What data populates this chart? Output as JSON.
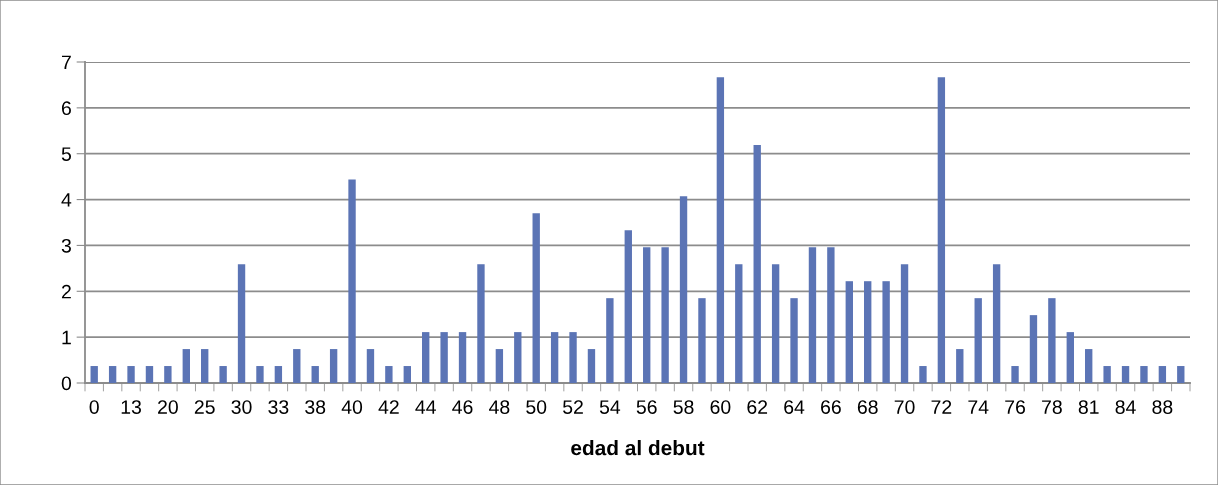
{
  "chart_data": {
    "type": "bar",
    "xlabel": "edad al debut",
    "categories": [
      "0",
      null,
      "13",
      null,
      "20",
      null,
      "25",
      null,
      "30",
      null,
      "33",
      null,
      "38",
      null,
      "40",
      null,
      "42",
      null,
      "44",
      null,
      "46",
      null,
      "48",
      null,
      "50",
      null,
      "52",
      null,
      "54",
      null,
      "56",
      null,
      "58",
      null,
      "60",
      null,
      "62",
      null,
      "64",
      null,
      "66",
      null,
      "68",
      null,
      "70",
      null,
      "72",
      null,
      "74",
      null,
      "76",
      null,
      "78",
      null,
      "81",
      null,
      "84",
      null,
      "88",
      null
    ],
    "values": [
      0.37,
      0.37,
      0.37,
      0.37,
      0.37,
      0.74,
      0.74,
      0.37,
      2.59,
      0.37,
      0.37,
      0.74,
      0.37,
      0.74,
      4.44,
      0.74,
      0.37,
      0.37,
      1.11,
      1.11,
      1.11,
      2.59,
      0.74,
      1.11,
      3.7,
      1.11,
      1.11,
      0.74,
      1.85,
      3.33,
      2.96,
      2.96,
      4.07,
      1.85,
      6.67,
      2.59,
      5.19,
      2.59,
      1.85,
      2.96,
      2.96,
      2.22,
      2.22,
      2.22,
      2.59,
      0.37,
      6.67,
      0.74,
      1.85,
      2.59,
      0.37,
      1.48,
      1.85,
      1.11,
      0.74,
      0.37,
      0.37,
      0.37,
      0.37,
      0.37
    ],
    "color": "#5b74b5",
    "ylim": [
      0,
      7
    ],
    "yticks": [
      0,
      1,
      2,
      3,
      4,
      5,
      6,
      7
    ],
    "grid": "y",
    "legend": false
  }
}
